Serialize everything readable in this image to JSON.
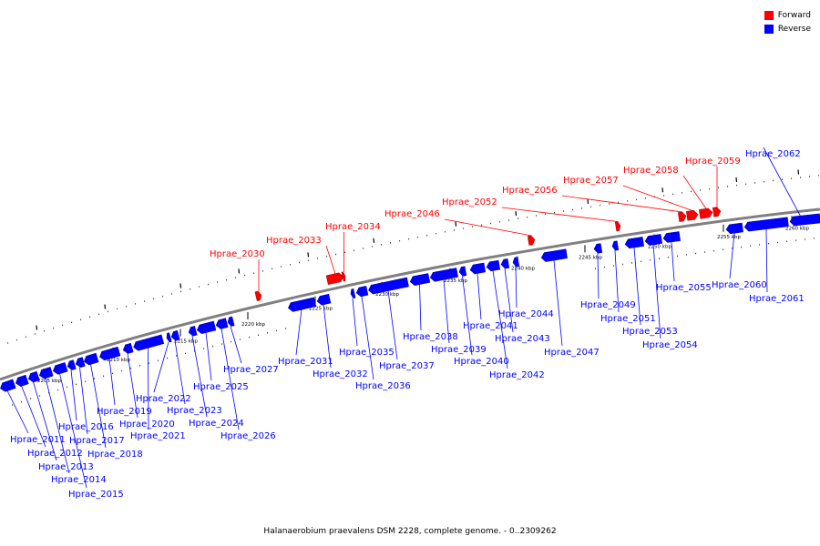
{
  "legend": [
    {
      "label": "Forward",
      "color": "#ff0000"
    },
    {
      "label": "Reverse",
      "color": "#0000ff"
    }
  ],
  "caption": "Halanaerobium praevalens DSM 2228, complete genome. - 0..2309262",
  "colors": {
    "forward": "#ff0000",
    "reverse": "#0000ff",
    "axis": "#808080"
  },
  "ticks": [
    "2205 kbp",
    "2210 kbp",
    "2215 kbp",
    "2220 kbp",
    "2225 kbp",
    "2230 kbp",
    "2235 kbp",
    "2240 kbp",
    "2245 kbp",
    "2250 kbp",
    "2255 kbp",
    "2260 kbp"
  ],
  "genes": [
    {
      "name": "Hprae_2011",
      "strand": "reverse"
    },
    {
      "name": "Hprae_2012",
      "strand": "reverse"
    },
    {
      "name": "Hprae_2013",
      "strand": "reverse"
    },
    {
      "name": "Hprae_2014",
      "strand": "reverse"
    },
    {
      "name": "Hprae_2015",
      "strand": "reverse"
    },
    {
      "name": "Hprae_2016",
      "strand": "reverse"
    },
    {
      "name": "Hprae_2017",
      "strand": "reverse"
    },
    {
      "name": "Hprae_2018",
      "strand": "reverse"
    },
    {
      "name": "Hprae_2019",
      "strand": "reverse"
    },
    {
      "name": "Hprae_2020",
      "strand": "reverse"
    },
    {
      "name": "Hprae_2021",
      "strand": "reverse"
    },
    {
      "name": "Hprae_2022",
      "strand": "reverse"
    },
    {
      "name": "Hprae_2023",
      "strand": "reverse"
    },
    {
      "name": "Hprae_2024",
      "strand": "reverse"
    },
    {
      "name": "Hprae_2025",
      "strand": "reverse"
    },
    {
      "name": "Hprae_2026",
      "strand": "reverse"
    },
    {
      "name": "Hprae_2027",
      "strand": "reverse"
    },
    {
      "name": "Hprae_2030",
      "strand": "forward"
    },
    {
      "name": "Hprae_2031",
      "strand": "reverse"
    },
    {
      "name": "Hprae_2032",
      "strand": "reverse"
    },
    {
      "name": "Hprae_2033",
      "strand": "forward"
    },
    {
      "name": "Hprae_2034",
      "strand": "forward"
    },
    {
      "name": "Hprae_2035",
      "strand": "reverse"
    },
    {
      "name": "Hprae_2036",
      "strand": "reverse"
    },
    {
      "name": "Hprae_2037",
      "strand": "reverse"
    },
    {
      "name": "Hprae_2038",
      "strand": "reverse"
    },
    {
      "name": "Hprae_2039",
      "strand": "reverse"
    },
    {
      "name": "Hprae_2040",
      "strand": "reverse"
    },
    {
      "name": "Hprae_2041",
      "strand": "reverse"
    },
    {
      "name": "Hprae_2042",
      "strand": "reverse"
    },
    {
      "name": "Hprae_2043",
      "strand": "reverse"
    },
    {
      "name": "Hprae_2044",
      "strand": "reverse"
    },
    {
      "name": "Hprae_2046",
      "strand": "forward"
    },
    {
      "name": "Hprae_2047",
      "strand": "reverse"
    },
    {
      "name": "Hprae_2049",
      "strand": "reverse"
    },
    {
      "name": "Hprae_2051",
      "strand": "reverse"
    },
    {
      "name": "Hprae_2052",
      "strand": "forward"
    },
    {
      "name": "Hprae_2053",
      "strand": "reverse"
    },
    {
      "name": "Hprae_2054",
      "strand": "reverse"
    },
    {
      "name": "Hprae_2055",
      "strand": "reverse"
    },
    {
      "name": "Hprae_2056",
      "strand": "forward"
    },
    {
      "name": "Hprae_2057",
      "strand": "forward"
    },
    {
      "name": "Hprae_2058",
      "strand": "forward"
    },
    {
      "name": "Hprae_2059",
      "strand": "forward"
    },
    {
      "name": "Hprae_2060",
      "strand": "reverse"
    },
    {
      "name": "Hprae_2061",
      "strand": "reverse"
    },
    {
      "name": "Hprae_2062",
      "strand": "reverse"
    }
  ]
}
